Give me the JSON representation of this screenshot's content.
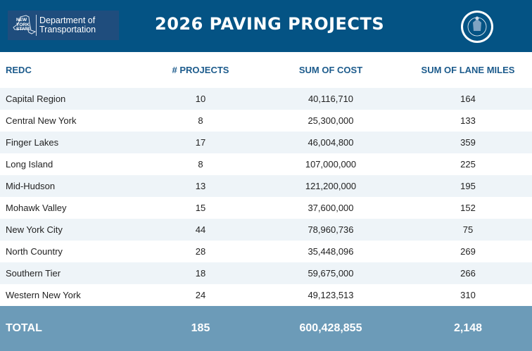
{
  "header": {
    "logo": {
      "state_text": "NEW YORK STATE",
      "department": "Department of Transportation"
    },
    "title": "2026 PAVING PROJECTS",
    "seal_text": "STATE OF NEW YORK"
  },
  "colors": {
    "header_bg": "#045384",
    "column_header_text": "#1c5b8c",
    "total_bg": "#6c9bb8",
    "row_alt": "#eef4f8"
  },
  "table": {
    "columns": [
      "REDC",
      "# PROJECTS",
      "SUM OF COST",
      "SUM OF LANE MILES"
    ],
    "rows": [
      [
        "Capital Region",
        "10",
        "40,116,710",
        "164"
      ],
      [
        "Central New York",
        "8",
        "25,300,000",
        "133"
      ],
      [
        "Finger Lakes",
        "17",
        "46,004,800",
        "359"
      ],
      [
        "Long Island",
        "8",
        "107,000,000",
        "225"
      ],
      [
        "Mid-Hudson",
        "13",
        "121,200,000",
        "195"
      ],
      [
        "Mohawk Valley",
        "15",
        "37,600,000",
        "152"
      ],
      [
        "New York City",
        "44",
        "78,960,736",
        "75"
      ],
      [
        "North Country",
        "28",
        "35,448,096",
        "269"
      ],
      [
        "Southern Tier",
        "18",
        "59,675,000",
        "266"
      ],
      [
        "Western New York",
        "24",
        "49,123,513",
        "310"
      ]
    ],
    "total": [
      "TOTAL",
      "185",
      "600,428,855",
      "2,148"
    ]
  }
}
